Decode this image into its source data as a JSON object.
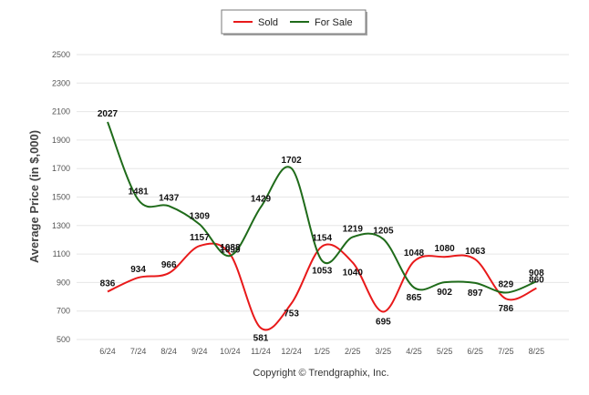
{
  "chart_data": {
    "type": "line",
    "title": "",
    "xlabel": "",
    "ylabel": "Average Price (in $,000)",
    "categories": [
      "6/24",
      "7/24",
      "8/24",
      "9/24",
      "10/24",
      "11/24",
      "12/24",
      "1/25",
      "2/25",
      "3/25",
      "4/25",
      "5/25",
      "6/25",
      "7/25",
      "8/25"
    ],
    "ylim": [
      500,
      2500
    ],
    "yticks": [
      500,
      700,
      900,
      1100,
      1300,
      1500,
      1700,
      1900,
      2100,
      2300,
      2500
    ],
    "grid": true,
    "legend_position": "top-center",
    "series": [
      {
        "name": "Sold",
        "color": "#e8191a",
        "values": [
          836,
          934,
          966,
          1157,
          1099,
          581,
          753,
          1154,
          1040,
          695,
          1048,
          1080,
          1063,
          786,
          860
        ]
      },
      {
        "name": "For Sale",
        "color": "#1f6b1a",
        "values": [
          2027,
          1481,
          1437,
          1309,
          1088,
          1429,
          1702,
          1053,
          1219,
          1205,
          865,
          902,
          897,
          829,
          908
        ]
      }
    ]
  },
  "footer": "Copyright © Trendgraphix, Inc."
}
